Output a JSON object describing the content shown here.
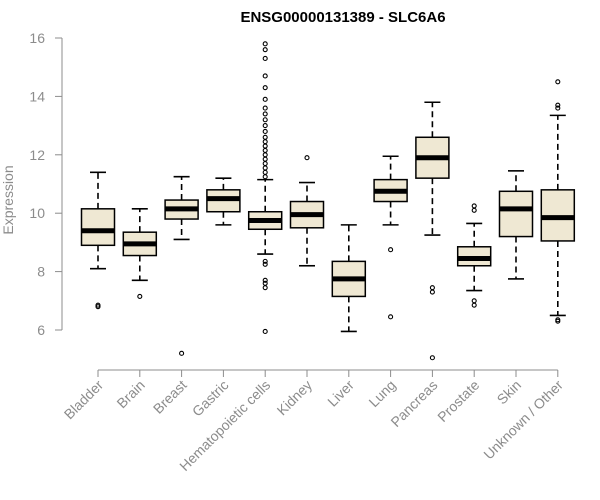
{
  "chart_data": {
    "type": "box",
    "title": "ENSG00000131389 - SLC6A6",
    "xlabel": "",
    "ylabel": "Expression",
    "ylim": [
      4.6,
      16.3
    ],
    "yticks": [
      6,
      8,
      10,
      12,
      14,
      16
    ],
    "box_fill": "#efe8d3",
    "grid": false,
    "legend": "none",
    "categories": [
      "Bladder",
      "Brain",
      "Breast",
      "Gastric",
      "Hematopoietic cells",
      "Kidney",
      "Liver",
      "Lung",
      "Pancreas",
      "Prostate",
      "Skin",
      "Unknown / Other"
    ],
    "boxes": [
      {
        "whisker_low": 8.1,
        "q1": 8.9,
        "median": 9.4,
        "q3": 10.15,
        "whisker_high": 11.4,
        "outliers": [
          6.85,
          6.8
        ]
      },
      {
        "whisker_low": 7.7,
        "q1": 8.55,
        "median": 8.95,
        "q3": 9.35,
        "whisker_high": 10.15,
        "outliers": [
          7.15
        ]
      },
      {
        "whisker_low": 9.1,
        "q1": 9.8,
        "median": 10.15,
        "q3": 10.45,
        "whisker_high": 11.25,
        "outliers": [
          5.2
        ]
      },
      {
        "whisker_low": 9.6,
        "q1": 10.05,
        "median": 10.5,
        "q3": 10.8,
        "whisker_high": 11.2,
        "outliers": []
      },
      {
        "whisker_low": 8.6,
        "q1": 9.45,
        "median": 9.75,
        "q3": 10.05,
        "whisker_high": 11.15,
        "outliers": [
          15.8,
          15.6,
          15.3,
          14.7,
          14.3,
          13.9,
          13.6,
          13.4,
          13.2,
          13.0,
          12.8,
          12.6,
          12.45,
          12.3,
          12.15,
          12.0,
          11.85,
          11.7,
          11.55,
          11.4,
          11.25,
          8.35,
          8.25,
          7.7,
          7.6,
          7.45,
          5.95
        ]
      },
      {
        "whisker_low": 8.2,
        "q1": 9.5,
        "median": 9.95,
        "q3": 10.4,
        "whisker_high": 11.05,
        "outliers": [
          11.9
        ]
      },
      {
        "whisker_low": 5.95,
        "q1": 7.15,
        "median": 7.75,
        "q3": 8.35,
        "whisker_high": 9.6,
        "outliers": []
      },
      {
        "whisker_low": 9.6,
        "q1": 10.4,
        "median": 10.75,
        "q3": 11.15,
        "whisker_high": 11.95,
        "outliers": [
          8.75,
          6.45
        ]
      },
      {
        "whisker_low": 9.25,
        "q1": 11.2,
        "median": 11.9,
        "q3": 12.6,
        "whisker_high": 13.8,
        "outliers": [
          7.45,
          7.3,
          5.05
        ]
      },
      {
        "whisker_low": 7.35,
        "q1": 8.2,
        "median": 8.45,
        "q3": 8.85,
        "whisker_high": 9.65,
        "outliers": [
          10.25,
          10.1,
          7.0,
          6.85
        ]
      },
      {
        "whisker_low": 7.75,
        "q1": 9.2,
        "median": 10.15,
        "q3": 10.75,
        "whisker_high": 11.45,
        "outliers": []
      },
      {
        "whisker_low": 6.5,
        "q1": 9.05,
        "median": 9.85,
        "q3": 10.8,
        "whisker_high": 13.35,
        "outliers": [
          14.5,
          13.7,
          13.6,
          6.35,
          6.3
        ]
      }
    ]
  }
}
